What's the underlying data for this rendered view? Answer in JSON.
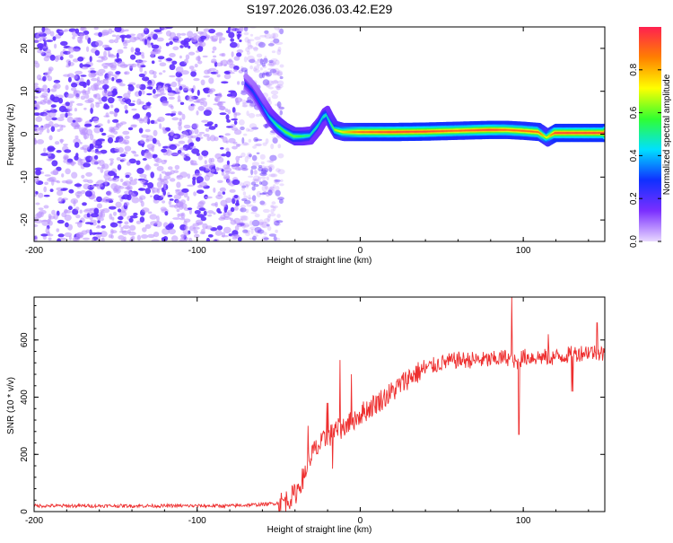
{
  "title": "S197.2026.036.03.42.E29",
  "chart_data": [
    {
      "type": "heatmap",
      "xlabel": "Height of straight line (km)",
      "ylabel": "Frequency (Hz)",
      "xlim": [
        -200,
        150
      ],
      "ylim": [
        -25,
        25
      ],
      "xticks": [
        -200,
        -100,
        0,
        100
      ],
      "yticks": [
        -20,
        -10,
        0,
        10,
        20
      ],
      "colorbar": {
        "label": "Normalized spectral amplitude",
        "range": [
          0,
          1
        ],
        "ticks": [
          0.0,
          0.2,
          0.4,
          0.6,
          0.8
        ],
        "tick_labels": [
          "0.0",
          "0.2",
          "0.4",
          "0.6",
          "0.8"
        ],
        "colors": [
          "#e8d8ff",
          "#7b2fff",
          "#1030ff",
          "#00e0ff",
          "#30ff30",
          "#ffff00",
          "#ff8000",
          "#ff2050"
        ]
      },
      "noise_region": {
        "x_range": [
          -200,
          -58
        ],
        "freq_range": [
          -25,
          25
        ],
        "level_range": [
          0.05,
          0.2
        ]
      },
      "ridge": {
        "x": [
          -70,
          -65,
          -60,
          -55,
          -50,
          -45,
          -40,
          -35,
          -30,
          -25,
          -22,
          -20,
          -18,
          -15,
          -10,
          0,
          20,
          40,
          60,
          80,
          90,
          100,
          110,
          115,
          120,
          150
        ],
        "freq": [
          12,
          10,
          7,
          4,
          2,
          0.5,
          -0.5,
          -0.5,
          -0.3,
          2,
          4,
          4.5,
          3,
          1,
          0.5,
          0.5,
          0.5,
          0.6,
          0.8,
          1,
          1,
          0.8,
          0.5,
          -0.8,
          0.3,
          0.3
        ],
        "amplitude": [
          0.25,
          0.3,
          0.35,
          0.45,
          0.55,
          0.6,
          0.6,
          0.55,
          0.5,
          0.5,
          0.5,
          0.5,
          0.55,
          0.65,
          0.75,
          0.9,
          0.95,
          0.95,
          0.9,
          0.95,
          0.9,
          0.9,
          0.9,
          0.7,
          0.95,
          0.95
        ]
      }
    },
    {
      "type": "line",
      "xlabel": "Height of straight line (km)",
      "ylabel": "SNR (10 * v/v)",
      "xlim": [
        -200,
        150
      ],
      "ylim": [
        0,
        750
      ],
      "xticks": [
        -200,
        -100,
        0,
        100
      ],
      "yticks": [
        0,
        200,
        400,
        600
      ],
      "color": "#ee3030",
      "series": [
        {
          "name": "SNR",
          "x": [
            -200,
            -180,
            -160,
            -140,
            -120,
            -100,
            -80,
            -60,
            -50,
            -45,
            -40,
            -35,
            -30,
            -25,
            -20,
            -15,
            -10,
            -5,
            0,
            10,
            20,
            30,
            40,
            50,
            60,
            70,
            80,
            90,
            95,
            100,
            110,
            120,
            130,
            140,
            150
          ],
          "y": [
            20,
            20,
            20,
            20,
            20,
            20,
            20,
            25,
            30,
            40,
            60,
            120,
            200,
            230,
            260,
            280,
            300,
            320,
            340,
            380,
            420,
            470,
            500,
            520,
            530,
            530,
            530,
            540,
            520,
            540,
            540,
            540,
            550,
            560,
            550
          ],
          "spikes": [
            {
              "x": -35,
              "y": 40
            },
            {
              "x": -32,
              "y": 300
            },
            {
              "x": -28,
              "y": 70
            },
            {
              "x": -20,
              "y": 380
            },
            {
              "x": -17,
              "y": 150
            },
            {
              "x": -12,
              "y": 530
            },
            {
              "x": -8,
              "y": 60
            },
            {
              "x": -5,
              "y": 480
            },
            {
              "x": 93,
              "y": 750
            },
            {
              "x": 95,
              "y": 300
            },
            {
              "x": 97,
              "y": 270
            },
            {
              "x": 115,
              "y": 620
            },
            {
              "x": 130,
              "y": 420
            },
            {
              "x": 145,
              "y": 660
            }
          ]
        }
      ]
    }
  ]
}
